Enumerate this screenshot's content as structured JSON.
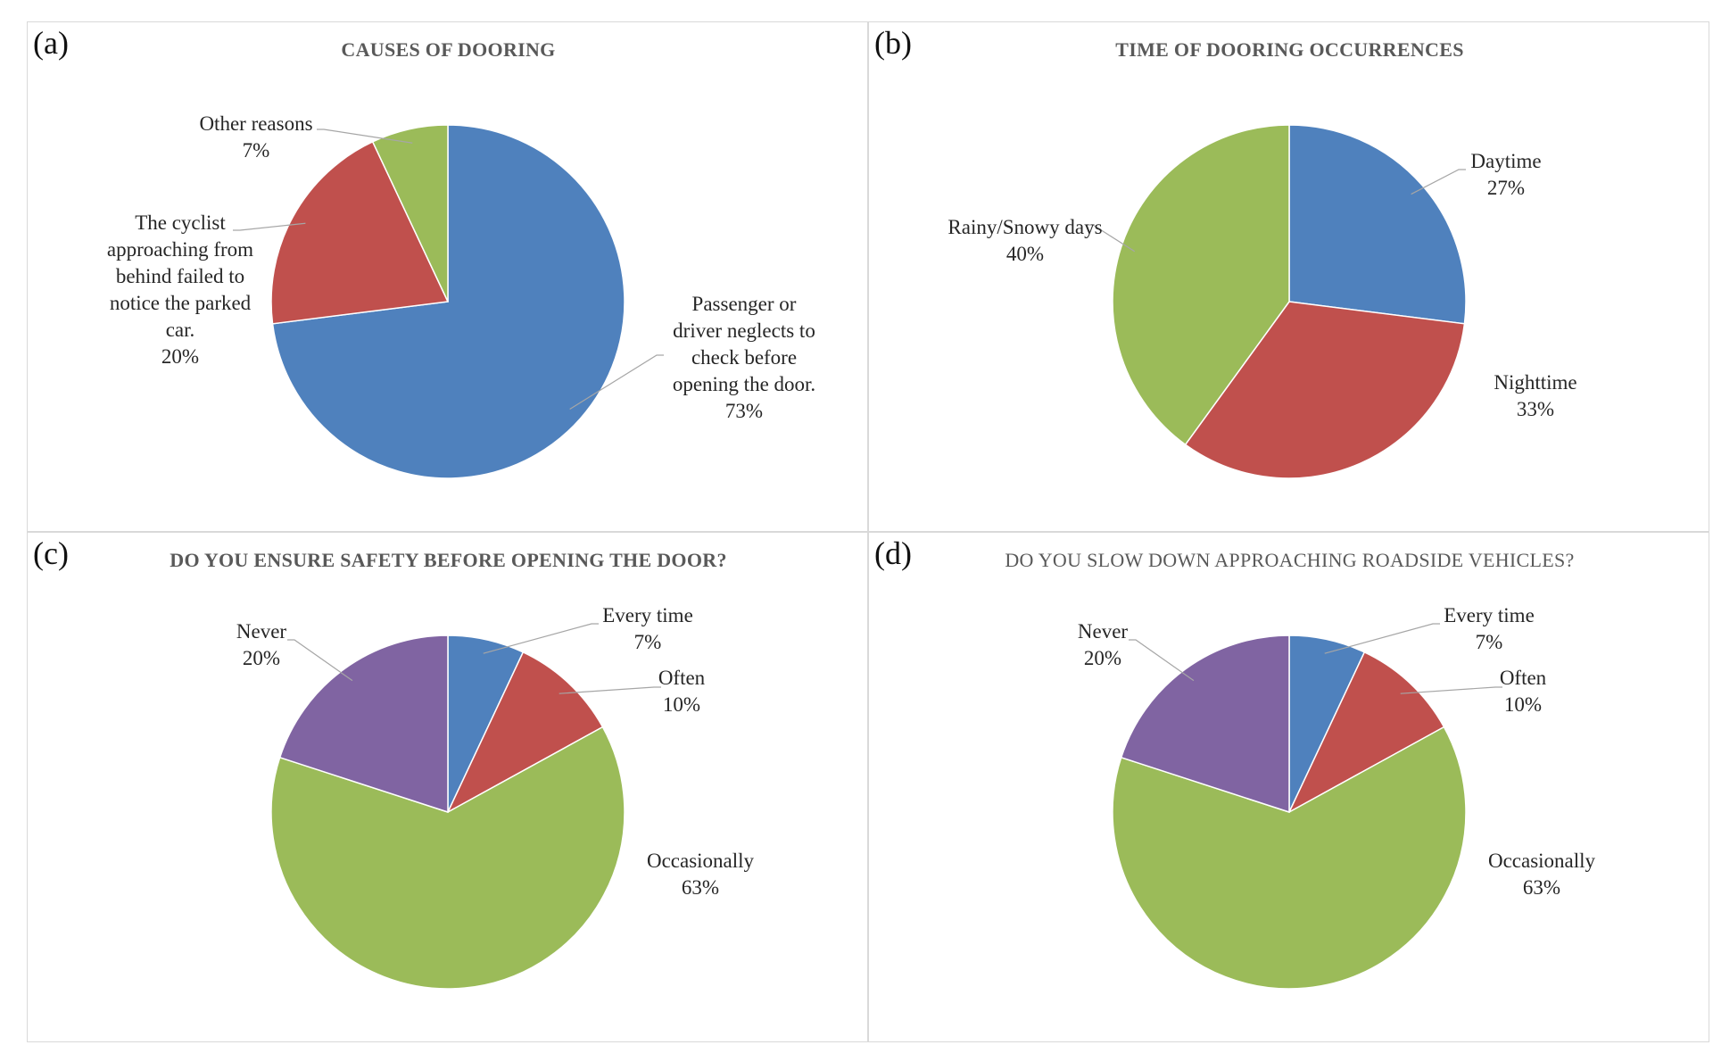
{
  "chart_data": [
    {
      "type": "pie",
      "panel_label": "(a)",
      "title": "CAUSES OF DOORING",
      "title_bold": true,
      "categories": [
        "Passenger or driver neglects to check before opening the door.",
        "The cyclist approaching from behind failed to notice the parked car.",
        "Other reasons"
      ],
      "values": [
        73,
        20,
        7
      ],
      "value_labels": [
        "73%",
        "20%",
        "7%"
      ],
      "colors": [
        "#4f81bd",
        "#c0504d",
        "#9bbb59"
      ]
    },
    {
      "type": "pie",
      "panel_label": "(b)",
      "title": "TIME OF DOORING OCCURRENCES",
      "title_bold": true,
      "categories": [
        "Daytime",
        "Nighttime",
        "Rainy/Snowy days"
      ],
      "values": [
        27,
        33,
        40
      ],
      "value_labels": [
        "27%",
        "33%",
        "40%"
      ],
      "colors": [
        "#4f81bd",
        "#c0504d",
        "#9bbb59"
      ]
    },
    {
      "type": "pie",
      "panel_label": "(c)",
      "title": "DO YOU ENSURE SAFETY BEFORE OPENING THE DOOR?",
      "title_bold": true,
      "categories": [
        "Every time",
        "Often",
        "Occasionally",
        "Never"
      ],
      "values": [
        7,
        10,
        63,
        20
      ],
      "value_labels": [
        "7%",
        "10%",
        "63%",
        "20%"
      ],
      "colors": [
        "#4f81bd",
        "#c0504d",
        "#9bbb59",
        "#8064a2"
      ]
    },
    {
      "type": "pie",
      "panel_label": "(d)",
      "title": "DO YOU SLOW DOWN APPROACHING ROADSIDE VEHICLES?",
      "title_bold": false,
      "categories": [
        "Every time",
        "Often",
        "Occasionally",
        "Never"
      ],
      "values": [
        7,
        10,
        63,
        20
      ],
      "value_labels": [
        "7%",
        "10%",
        "63%",
        "20%"
      ],
      "colors": [
        "#4f81bd",
        "#c0504d",
        "#9bbb59",
        "#8064a2"
      ]
    }
  ]
}
